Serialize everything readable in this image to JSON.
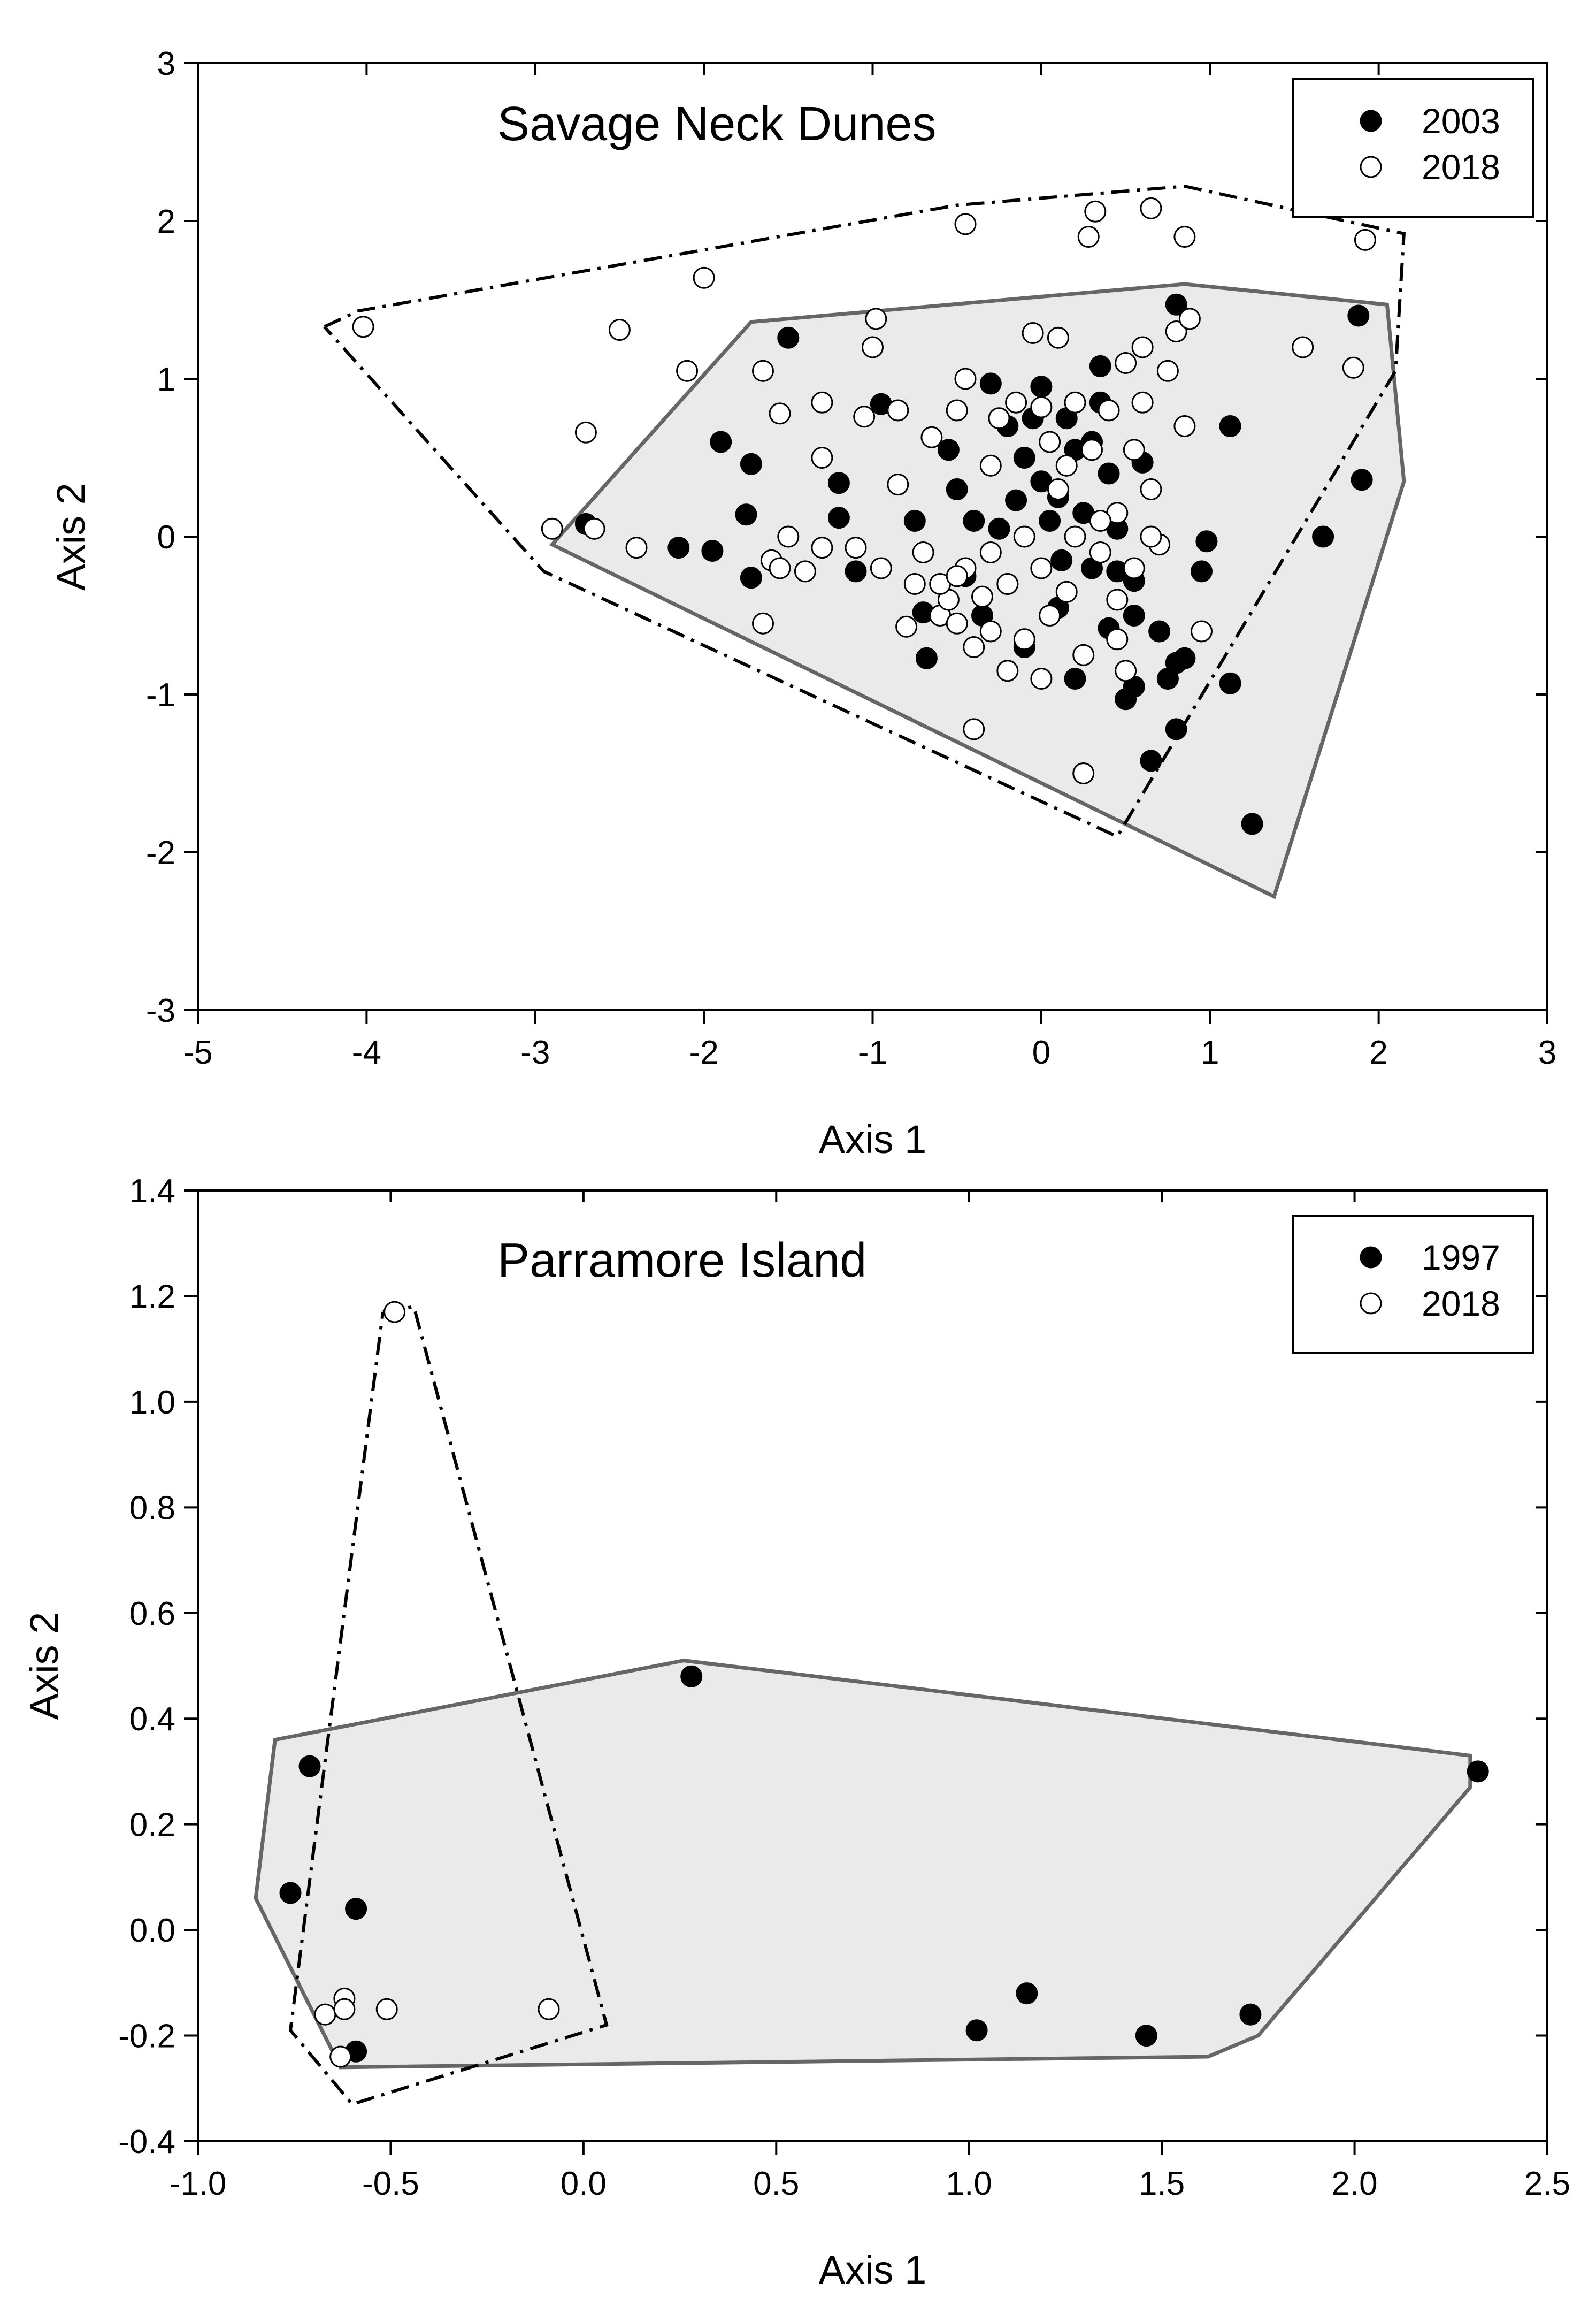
{
  "chart_data": [
    {
      "type": "scatter",
      "title": "Savage Neck Dunes",
      "xlabel": "Axis 1",
      "ylabel": "Axis 2",
      "xlim": [
        -5,
        3
      ],
      "ylim": [
        -3,
        3
      ],
      "xticks": [
        "-5",
        "-4",
        "-3",
        "-2",
        "-1",
        "0",
        "1",
        "2",
        "3"
      ],
      "yticks": [
        "-3",
        "-2",
        "-1",
        "0",
        "1",
        "2",
        "3"
      ],
      "legend": {
        "position": "top-right"
      },
      "series": [
        {
          "name": "2003",
          "marker": "filled-circle",
          "color": "#000000",
          "hull_style": "solid-gray-filled",
          "hull_fill": "#eaeaea",
          "hull_stroke": "#666666",
          "hull": [
            [
              -2.9,
              -0.05
            ],
            [
              -1.72,
              1.36
            ],
            [
              0.85,
              1.6
            ],
            [
              2.05,
              1.47
            ],
            [
              2.15,
              0.35
            ],
            [
              1.38,
              -2.28
            ],
            [
              -2.9,
              -0.05
            ]
          ],
          "points": [
            [
              -1.5,
              1.26
            ],
            [
              -1.72,
              0.46
            ],
            [
              -1.9,
              0.6
            ],
            [
              -1.75,
              0.14
            ],
            [
              -2.15,
              -0.07
            ],
            [
              -1.95,
              -0.09
            ],
            [
              -2.7,
              0.08
            ],
            [
              -1.72,
              -0.26
            ],
            [
              -1.2,
              0.34
            ],
            [
              -1.2,
              0.12
            ],
            [
              -1.1,
              -0.22
            ],
            [
              -0.95,
              0.84
            ],
            [
              -0.75,
              0.1
            ],
            [
              -0.7,
              -0.48
            ],
            [
              -0.68,
              -0.77
            ],
            [
              -0.55,
              0.55
            ],
            [
              -0.5,
              0.3
            ],
            [
              -0.45,
              -0.25
            ],
            [
              -0.35,
              -0.5
            ],
            [
              -0.3,
              0.97
            ],
            [
              -0.25,
              0.05
            ],
            [
              -0.2,
              -0.3
            ],
            [
              -0.15,
              0.23
            ],
            [
              -0.1,
              0.5
            ],
            [
              -0.05,
              0.75
            ],
            [
              0.0,
              0.35
            ],
            [
              0.05,
              0.1
            ],
            [
              0.1,
              0.25
            ],
            [
              0.12,
              -0.15
            ],
            [
              0.15,
              0.75
            ],
            [
              0.2,
              0.55
            ],
            [
              0.25,
              0.15
            ],
            [
              0.3,
              -0.2
            ],
            [
              0.35,
              1.08
            ],
            [
              0.35,
              0.85
            ],
            [
              0.4,
              0.4
            ],
            [
              0.4,
              -0.58
            ],
            [
              0.45,
              0.05
            ],
            [
              0.45,
              -0.22
            ],
            [
              0.5,
              -1.03
            ],
            [
              0.55,
              -0.28
            ],
            [
              0.55,
              -0.5
            ],
            [
              0.6,
              0.47
            ],
            [
              0.65,
              -1.42
            ],
            [
              0.7,
              -0.6
            ],
            [
              0.75,
              -0.9
            ],
            [
              0.8,
              1.47
            ],
            [
              0.8,
              -0.8
            ],
            [
              0.85,
              -0.77
            ],
            [
              0.95,
              -0.22
            ],
            [
              0.98,
              -0.03
            ],
            [
              0.8,
              -1.22
            ],
            [
              1.12,
              -0.93
            ],
            [
              1.12,
              0.7
            ],
            [
              1.25,
              -1.82
            ],
            [
              1.67,
              0.0
            ],
            [
              1.88,
              1.4
            ],
            [
              1.9,
              0.36
            ],
            [
              0.2,
              -0.9
            ],
            [
              -0.1,
              -0.7
            ],
            [
              0.0,
              0.95
            ],
            [
              -0.2,
              0.7
            ],
            [
              0.55,
              -0.95
            ],
            [
              0.3,
              0.6
            ],
            [
              0.1,
              -0.45
            ],
            [
              -0.4,
              0.1
            ]
          ]
        },
        {
          "name": "2018",
          "marker": "open-circle",
          "color": "#000000",
          "hull_style": "dash-dot",
          "hull": [
            [
              -4.25,
              1.33
            ],
            [
              -4.05,
              1.43
            ],
            [
              -0.5,
              2.1
            ],
            [
              0.85,
              2.22
            ],
            [
              2.15,
              1.92
            ],
            [
              2.1,
              1.05
            ],
            [
              0.45,
              -1.9
            ],
            [
              -2.95,
              -0.22
            ],
            [
              -4.25,
              1.33
            ]
          ],
          "points": [
            [
              -4.02,
              1.33
            ],
            [
              -2.7,
              0.66
            ],
            [
              -2.5,
              1.31
            ],
            [
              -2.1,
              1.05
            ],
            [
              -2.0,
              1.64
            ],
            [
              -2.9,
              0.05
            ],
            [
              -2.65,
              0.05
            ],
            [
              -2.4,
              -0.07
            ],
            [
              -1.65,
              1.05
            ],
            [
              -1.65,
              -0.55
            ],
            [
              -1.55,
              0.78
            ],
            [
              -1.6,
              -0.15
            ],
            [
              -1.55,
              -0.2
            ],
            [
              -1.5,
              0.0
            ],
            [
              -1.4,
              -0.22
            ],
            [
              -1.3,
              0.85
            ],
            [
              -1.3,
              0.5
            ],
            [
              -1.3,
              -0.07
            ],
            [
              -1.1,
              -0.07
            ],
            [
              -1.05,
              0.76
            ],
            [
              -1.0,
              1.2
            ],
            [
              -0.98,
              1.38
            ],
            [
              -0.95,
              -0.2
            ],
            [
              -0.85,
              0.33
            ],
            [
              -0.85,
              0.8
            ],
            [
              -0.8,
              -0.57
            ],
            [
              -0.75,
              -0.3
            ],
            [
              -0.7,
              -0.1
            ],
            [
              -0.65,
              0.63
            ],
            [
              -0.6,
              -0.5
            ],
            [
              -0.55,
              -0.4
            ],
            [
              -0.5,
              0.8
            ],
            [
              -0.5,
              -0.55
            ],
            [
              -0.45,
              1.0
            ],
            [
              -0.45,
              -0.2
            ],
            [
              -0.4,
              -0.7
            ],
            [
              -0.4,
              -1.22
            ],
            [
              -0.35,
              -0.38
            ],
            [
              -0.3,
              0.45
            ],
            [
              -0.3,
              -0.6
            ],
            [
              -0.25,
              0.75
            ],
            [
              -0.2,
              -0.3
            ],
            [
              -0.2,
              -0.85
            ],
            [
              -0.15,
              0.85
            ],
            [
              -0.1,
              -0.65
            ],
            [
              -0.05,
              1.29
            ],
            [
              0.0,
              0.82
            ],
            [
              0.0,
              -0.2
            ],
            [
              0.05,
              0.6
            ],
            [
              0.05,
              -0.5
            ],
            [
              0.1,
              1.26
            ],
            [
              0.1,
              0.3
            ],
            [
              0.15,
              -0.35
            ],
            [
              0.2,
              0.85
            ],
            [
              0.2,
              0.0
            ],
            [
              0.25,
              -0.75
            ],
            [
              0.25,
              -1.5
            ],
            [
              0.28,
              1.9
            ],
            [
              0.3,
              0.55
            ],
            [
              0.32,
              2.06
            ],
            [
              0.35,
              -0.1
            ],
            [
              0.4,
              0.8
            ],
            [
              0.45,
              0.15
            ],
            [
              0.45,
              -0.4
            ],
            [
              0.5,
              1.1
            ],
            [
              0.5,
              -0.85
            ],
            [
              0.55,
              0.55
            ],
            [
              0.55,
              -0.2
            ],
            [
              0.6,
              1.2
            ],
            [
              0.6,
              0.85
            ],
            [
              0.65,
              2.08
            ],
            [
              0.65,
              0.3
            ],
            [
              0.7,
              -0.05
            ],
            [
              0.75,
              1.05
            ],
            [
              0.8,
              1.3
            ],
            [
              0.85,
              1.9
            ],
            [
              0.85,
              0.7
            ],
            [
              0.88,
              1.38
            ],
            [
              0.95,
              -0.6
            ],
            [
              1.55,
              1.2
            ],
            [
              1.85,
              1.07
            ],
            [
              1.92,
              1.88
            ],
            [
              -0.45,
              1.98
            ],
            [
              -0.6,
              -0.3
            ],
            [
              -0.3,
              -0.1
            ],
            [
              0.35,
              0.1
            ],
            [
              0.15,
              0.45
            ],
            [
              -0.1,
              0.0
            ],
            [
              0.45,
              -0.65
            ],
            [
              0.0,
              -0.9
            ],
            [
              0.65,
              0.0
            ],
            [
              -0.5,
              -0.25
            ]
          ]
        }
      ]
    },
    {
      "type": "scatter",
      "title": "Parramore Island",
      "xlabel": "Axis 1",
      "ylabel": "Axis 2",
      "xlim": [
        -1.0,
        2.5
      ],
      "ylim": [
        -0.4,
        1.4
      ],
      "xticks": [
        "-1.0",
        "-0.5",
        "0.0",
        "0.5",
        "1.0",
        "1.5",
        "2.0",
        "2.5"
      ],
      "yticks": [
        "-0.4",
        "-0.2",
        "0.0",
        "0.2",
        "0.4",
        "0.6",
        "0.8",
        "1.0",
        "1.2",
        "1.4"
      ],
      "legend": {
        "position": "top-right"
      },
      "series": [
        {
          "name": "1997",
          "marker": "filled-circle",
          "color": "#000000",
          "hull_style": "solid-gray-filled",
          "hull_fill": "#eaeaea",
          "hull_stroke": "#666666",
          "hull": [
            [
              -0.8,
              0.36
            ],
            [
              0.26,
              0.51
            ],
            [
              2.3,
              0.33
            ],
            [
              2.3,
              0.27
            ],
            [
              1.75,
              -0.2
            ],
            [
              1.62,
              -0.24
            ],
            [
              -0.63,
              -0.26
            ],
            [
              -0.85,
              0.06
            ],
            [
              -0.8,
              0.36
            ]
          ],
          "points": [
            [
              -0.71,
              0.31
            ],
            [
              -0.76,
              0.07
            ],
            [
              -0.59,
              0.04
            ],
            [
              -0.59,
              -0.23
            ],
            [
              0.28,
              0.48
            ],
            [
              1.02,
              -0.19
            ],
            [
              1.15,
              -0.12
            ],
            [
              1.46,
              -0.2
            ],
            [
              1.73,
              -0.16
            ],
            [
              2.32,
              0.3
            ]
          ]
        },
        {
          "name": "2018",
          "marker": "open-circle",
          "color": "#000000",
          "hull_style": "dash-dot",
          "hull": [
            [
              -0.52,
              1.17
            ],
            [
              -0.44,
              1.18
            ],
            [
              0.06,
              -0.18
            ],
            [
              -0.6,
              -0.33
            ],
            [
              -0.76,
              -0.19
            ],
            [
              -0.52,
              1.17
            ]
          ],
          "points": [
            [
              -0.49,
              1.17
            ],
            [
              -0.67,
              -0.16
            ],
            [
              -0.62,
              -0.13
            ],
            [
              -0.62,
              -0.15
            ],
            [
              -0.63,
              -0.24
            ],
            [
              -0.51,
              -0.15
            ],
            [
              -0.09,
              -0.15
            ]
          ]
        }
      ]
    }
  ]
}
